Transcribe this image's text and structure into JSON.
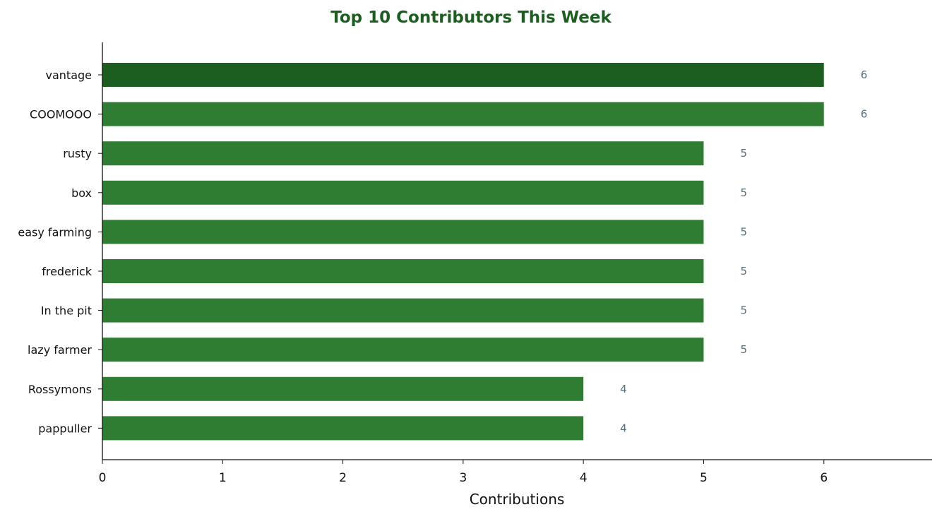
{
  "chart_data": {
    "type": "bar",
    "orientation": "horizontal",
    "title": "Top 10 Contributors This Week",
    "xlabel": "Contributions",
    "ylabel": "",
    "categories": [
      "vantage",
      "COOMOOO",
      "rusty",
      "box",
      "easy farming",
      "frederick",
      "In the pit",
      "lazy farmer",
      "Rossymons",
      "pappuller"
    ],
    "values": [
      6,
      6,
      5,
      5,
      5,
      5,
      5,
      5,
      4,
      4
    ],
    "xlim": [
      0,
      6.9
    ],
    "xticks": [
      0,
      1,
      2,
      3,
      4,
      5,
      6
    ],
    "grid": false,
    "legend": "none",
    "data_labels": true
  },
  "colors": {
    "title": "#1b5e20",
    "top_bar": "#1b5e20",
    "bar": "#2e7d32",
    "value_label": "#546e7a",
    "axis": "#111111"
  }
}
